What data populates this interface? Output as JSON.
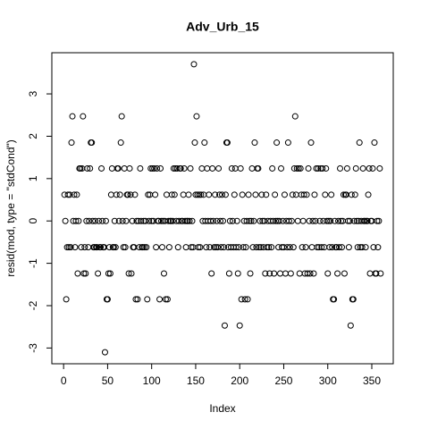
{
  "chart_data": {
    "type": "scatter",
    "title": "Adv_Urb_15",
    "x_label": "Index",
    "y_label": "resid(mod, type = \"stdCond\")",
    "xlim": [
      -13.36,
      374.36
    ],
    "ylim": [
      -3.372,
      3.972
    ],
    "xticks": [
      0,
      50,
      100,
      150,
      200,
      250,
      300,
      350
    ],
    "yticks": [
      -3,
      -2,
      -1,
      0,
      1,
      2,
      3
    ],
    "color": "#000000",
    "values": [
      0.62,
      0,
      -1.85,
      -0.62,
      0.62,
      -0.62,
      0.62,
      -0.62,
      1.85,
      2.47,
      0,
      0.62,
      -0.62,
      0,
      0.62,
      -1.24,
      0,
      1.24,
      1.24,
      -0.62,
      1.24,
      2.47,
      -1.24,
      -0.62,
      -1.24,
      0,
      1.24,
      -0.62,
      0,
      1.24,
      1.85,
      1.85,
      0,
      -0.62,
      -0.62,
      0,
      -0.62,
      -0.62,
      -1.24,
      0,
      -0.62,
      -0.62,
      1.24,
      0,
      -0.62,
      -0.62,
      -3.1,
      0,
      -1.85,
      -1.85,
      -1.24,
      -0.62,
      -1.24,
      0.62,
      1.24,
      -0.62,
      -0.62,
      0,
      -0.62,
      0.62,
      1.24,
      1.24,
      0,
      0.62,
      1.85,
      2.47,
      0,
      -0.62,
      1.24,
      -0.62,
      0,
      0.62,
      0.62,
      -1.24,
      1.24,
      0.62,
      -1.24,
      0,
      -0.62,
      -0.62,
      0.62,
      -1.85,
      0,
      -1.85,
      0,
      -0.62,
      1.24,
      0,
      -0.62,
      -0.62,
      0,
      -0.62,
      0,
      -0.62,
      -1.85,
      0.62,
      0,
      0.62,
      1.24,
      0,
      1.24,
      0,
      1.24,
      0.62,
      -0.62,
      1.24,
      0,
      0,
      -1.85,
      1.24,
      0,
      -0.62,
      0,
      -1.24,
      0,
      -1.85,
      0.62,
      -1.85,
      0,
      -0.62,
      0,
      0,
      0.62,
      0,
      1.24,
      0.62,
      1.24,
      0,
      1.24,
      -0.62,
      0,
      1.24,
      1.24,
      0,
      0,
      0.62,
      1.24,
      0,
      -0.62,
      0,
      0,
      0.62,
      0,
      1.24,
      -0.62,
      0,
      -0.62,
      3.7,
      1.85,
      0.62,
      2.47,
      0.62,
      -0.62,
      0.62,
      -0.62,
      0.62,
      1.24,
      0,
      0.62,
      1.85,
      0,
      -0.62,
      1.24,
      0,
      0.62,
      -0.62,
      0,
      -1.24,
      1.24,
      0,
      -0.62,
      0.62,
      -0.62,
      0,
      -0.62,
      1.24,
      0.62,
      0,
      -0.62,
      0.62,
      0,
      -0.62,
      -2.47,
      0.62,
      1.85,
      1.85,
      -0.62,
      -1.24,
      0,
      -0.62,
      1.24,
      0,
      -0.62,
      0.62,
      1.24,
      -0.62,
      0,
      -1.24,
      -0.62,
      -2.47,
      1.24,
      -1.85,
      0.62,
      -0.62,
      0,
      -1.85,
      -0.62,
      0,
      -1.85,
      0.62,
      0,
      -1.24,
      0,
      1.24,
      -0.62,
      0,
      1.85,
      0.62,
      -0.62,
      1.24,
      1.24,
      -0.62,
      0,
      -0.62,
      0.62,
      0,
      -0.62,
      0,
      -1.24,
      0.62,
      -0.62,
      0,
      -0.62,
      -1.24,
      0,
      -0.62,
      1.24,
      0,
      -1.24,
      0.62,
      0,
      1.85,
      0,
      -0.62,
      0,
      -1.24,
      1.24,
      -0.62,
      0,
      -0.62,
      0.62,
      -1.24,
      0,
      -0.62,
      1.85,
      0,
      -0.62,
      -1.24,
      0,
      0.62,
      -0.62,
      1.24,
      2.47,
      0.62,
      1.24,
      0,
      1.24,
      -1.24,
      1.24,
      0.62,
      -0.62,
      0,
      0.62,
      -1.24,
      -0.62,
      0.62,
      -1.24,
      1.24,
      0,
      -1.24,
      1.85,
      -0.62,
      0,
      -1.24,
      0.62,
      0,
      1.24,
      -0.62,
      1.24,
      -0.62,
      0,
      1.24,
      -0.62,
      1.24,
      0,
      -0.62,
      0.62,
      1.24,
      0,
      -1.24,
      0,
      -0.62,
      0,
      0.62,
      -0.62,
      -1.85,
      -1.85,
      0,
      -0.62,
      -0.62,
      -1.24,
      0,
      -0.62,
      1.24,
      0,
      -0.62,
      0,
      0.62,
      -1.24,
      0.62,
      0.62,
      1.24,
      0,
      -0.62,
      0,
      -2.47,
      0.62,
      -1.85,
      -1.85,
      0,
      0.62,
      1.24,
      0,
      -0.62,
      0,
      1.85,
      -0.62,
      0,
      -0.62,
      1.24,
      0,
      0,
      -0.62,
      0,
      0,
      0.62,
      1.24,
      -1.24,
      0,
      0,
      1.24,
      -0.62,
      1.85,
      -1.24,
      -1.24,
      0,
      -0.62,
      0,
      1.24,
      -1.24
    ]
  }
}
